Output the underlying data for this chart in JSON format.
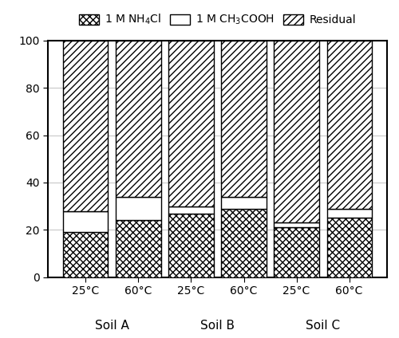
{
  "categories": [
    "25°C",
    "60°C",
    "25°C",
    "60°C",
    "25°C",
    "60°C"
  ],
  "group_labels": [
    "Soil A",
    "Soil B",
    "Soil C"
  ],
  "group_centers": [
    0.5,
    2.5,
    4.5
  ],
  "nh4cl": [
    19,
    24,
    27,
    29,
    21,
    25
  ],
  "ch3cooh": [
    9,
    10,
    3,
    5,
    2,
    4
  ],
  "residual": [
    72,
    66,
    70,
    66,
    77,
    71
  ],
  "legend_labels": [
    "1 M NH₄Cl",
    "1 M CH₃COOH",
    "Residual"
  ],
  "ylim": [
    0,
    100
  ],
  "yticks": [
    0,
    20,
    40,
    60,
    80,
    100
  ],
  "bar_width": 0.85,
  "figsize": [
    5.0,
    4.24
  ],
  "dpi": 100,
  "bg_color": "#ffffff",
  "bar_edgecolor": "#000000",
  "grid_color": "#c8c8c8",
  "title": ""
}
